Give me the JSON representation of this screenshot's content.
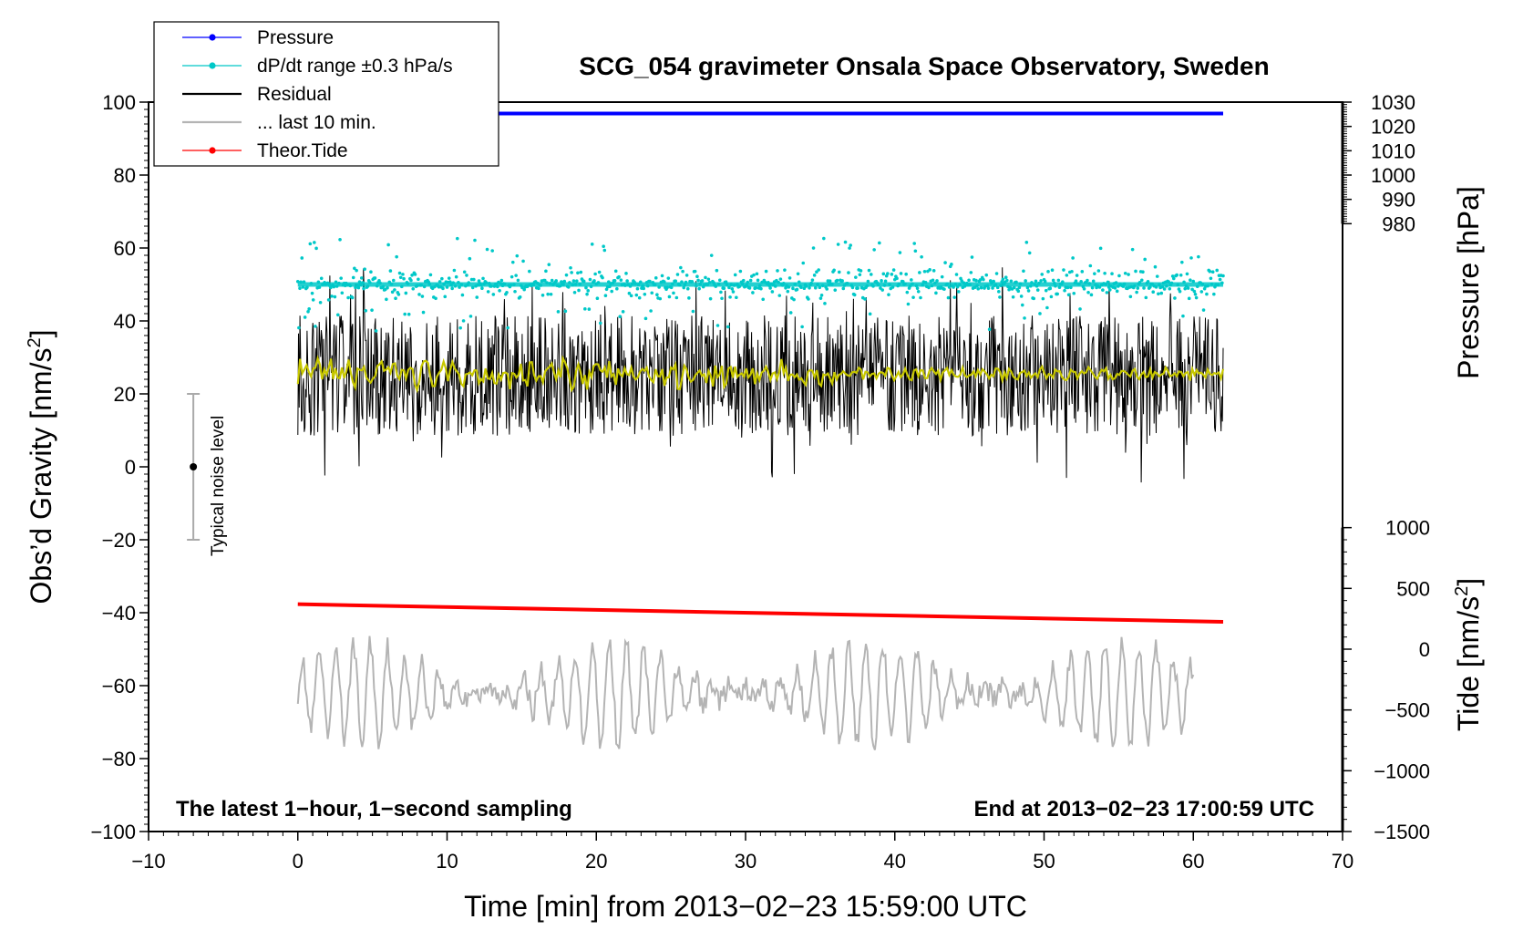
{
  "chart_data": {
    "type": "line",
    "title": "SCG_054 gravimeter Onsala Space Observatory, Sweden",
    "xlabel": "Time [min] from 2013−02−23 15:59:00 UTC",
    "xlim": [
      -10,
      70
    ],
    "xticks": [
      "−10",
      "0",
      "10",
      "20",
      "30",
      "40",
      "50",
      "60",
      "70"
    ],
    "y_left": {
      "label": "Obs’d Gravity [nm/s",
      "label_sup": "2",
      "label_end": "]",
      "lim": [
        -100,
        100
      ],
      "ticks": [
        "100",
        "80",
        "60",
        "40",
        "20",
        "0",
        "−20",
        "−40",
        "−60",
        "−80",
        "−100"
      ]
    },
    "y_right_pressure": {
      "label": "Pressure [hPa]",
      "ticks": [
        "1030",
        "1020",
        "1010",
        "1000",
        "990",
        "980"
      ],
      "lim": [
        980,
        1030
      ]
    },
    "y_right_tide": {
      "label": "Tide [nm/s",
      "label_sup": "2",
      "label_end": "]",
      "ticks": [
        "1000",
        "500",
        "0",
        "−500",
        "−1000",
        "−1500"
      ],
      "lim": [
        -1500,
        1000
      ]
    },
    "legend": [
      {
        "name": "Pressure",
        "color": "#0000ff",
        "marker": true
      },
      {
        "name": "dP/dt range ±0.3 hPa/s",
        "color": "#00c8c8",
        "marker": true
      },
      {
        "name": "Residual",
        "color": "#000000",
        "marker": false
      },
      {
        "name": "... last 10 min.",
        "color": "#b4b4b4",
        "marker": false
      },
      {
        "name": "Theor.Tide",
        "color": "#ff0000",
        "marker": true
      }
    ],
    "series": [
      {
        "name": "Pressure",
        "axis": "pressure",
        "x": [
          0,
          62
        ],
        "values": [
          1025.3,
          1025.3
        ]
      },
      {
        "name": "dP/dt range ±0.3 hPa/s",
        "axis": "gravity",
        "x": [
          0,
          62
        ],
        "center": 50,
        "spread": 8
      },
      {
        "name": "Residual",
        "axis": "gravity",
        "x": [
          0,
          62
        ],
        "center": 25,
        "spread": 22
      },
      {
        "name": "Residual (smoothed)",
        "axis": "gravity",
        "x": [
          0,
          62
        ],
        "center": 25.5,
        "spread": 3
      },
      {
        "name": "Theor.Tide",
        "axis": "tide",
        "x": [
          0,
          62
        ],
        "values": [
          370,
          225
        ]
      },
      {
        "name": "... last 10 min.",
        "axis": "gravity",
        "x": [
          0,
          60
        ],
        "center": -62,
        "spread": 14
      }
    ],
    "noise_bar": {
      "label": "Typical noise level",
      "x": -7,
      "center": 0,
      "low": -20,
      "high": 20
    },
    "annotations": {
      "left": "The latest 1−hour, 1−second sampling",
      "right": "End at 2013−02−23 17:00:59 UTC"
    },
    "colors": {
      "pressure": "#0000ff",
      "dpdt": "#00c8c8",
      "residual": "#000000",
      "smoothed": "#c8c800",
      "last10": "#b4b4b4",
      "tide": "#ff0000"
    }
  }
}
